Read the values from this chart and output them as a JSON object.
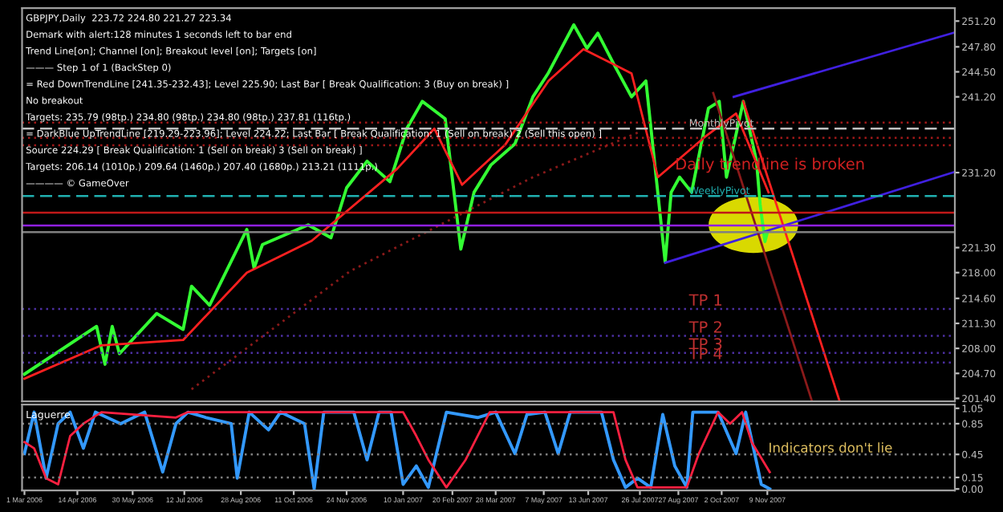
{
  "chart_data": [
    {
      "type": "line",
      "title": "GBPJPY,Daily  223.72 224.80 221.27 223.34",
      "annotations": [
        "Demark with alert:128 minutes 1 seconds left to bar end",
        "Trend Line[on]; Channel [on]; Breakout level [on]; Targets [on]",
        "——— Step 1 of 1 (BackStep 0)",
        "= Red DownTrendLine [241.35-232.43]; Level 225.90; Last Bar [ Break Qualification: 3 (Buy on break) ]",
        "No breakout",
        "Targets: 235.79 (98tp.) 234.80 (98tp.) 234.80 (98tp.) 237.81 (116tp.)",
        "= DarkBlue UpTrendLine [219.29-223.96]; Level 224.22; Last Bar [ Break Qualification: 1 (Sell on break) 2 (Sell this open) ]",
        "Source 224.29 [ Break Qualification: 1 (Sell on break) 3 (Sell on break) ]",
        "Targets: 206.14 (1010p.) 209.64 (1460p.) 207.40 (1680p.) 213.21 (1111p.)",
        "———— © GameOver",
        "Daily trendline is broken"
      ],
      "xlim": [
        "2006-02-27",
        "2008-04-13"
      ],
      "ylim": [
        201.0,
        252.9
      ],
      "yticks": [
        {
          "value": 201.4,
          "label": "201.40"
        },
        {
          "value": 204.7,
          "label": "204.70"
        },
        {
          "value": 208.0,
          "label": "208.00"
        },
        {
          "value": 211.3,
          "label": "211.30"
        },
        {
          "value": 214.6,
          "label": "214.60"
        },
        {
          "value": 218.0,
          "label": "218.00"
        },
        {
          "value": 221.3,
          "label": "221.30"
        },
        {
          "value": 231.2,
          "label": "231.20"
        },
        {
          "value": 241.2,
          "label": "241.20"
        },
        {
          "value": 244.5,
          "label": "244.50"
        },
        {
          "value": 247.8,
          "label": "247.80"
        },
        {
          "value": 251.2,
          "label": "251.20"
        }
      ],
      "tick_labels": "y",
      "series": [
        {
          "color": "#33ff33",
          "x": [
            "2006-03-01",
            "2006-04-30",
            "2006-05-07",
            "2006-05-13",
            "2006-05-19",
            "2006-06-19",
            "2006-07-11",
            "2006-07-18",
            "2006-08-02",
            "2006-09-02",
            "2006-09-08",
            "2006-09-15",
            "2006-10-23",
            "2006-11-11",
            "2006-11-24",
            "2006-12-11",
            "2006-12-30",
            "2007-01-13",
            "2007-01-26",
            "2007-02-14",
            "2007-02-27",
            "2007-03-10",
            "2007-03-24",
            "2007-04-13",
            "2007-04-28",
            "2007-05-11",
            "2007-06-01",
            "2007-06-12",
            "2007-06-21",
            "2007-07-05",
            "2007-07-19",
            "2007-07-31",
            "2007-08-16",
            "2007-08-21",
            "2007-08-28",
            "2007-09-07",
            "2007-09-21",
            "2007-09-30",
            "2007-10-06",
            "2007-10-16",
            "2007-10-20",
            "2007-10-31",
            "2007-11-03",
            "2007-11-07",
            "2007-11-09"
          ],
          "values": [
            204.6,
            210.9,
            205.9,
            210.9,
            207.3,
            212.6,
            210.5,
            216.2,
            213.7,
            223.7,
            218.6,
            221.7,
            224.3,
            222.6,
            229.2,
            232.7,
            230.0,
            237.0,
            240.6,
            238.3,
            221.1,
            228.6,
            232.2,
            235.0,
            241.2,
            244.4,
            250.7,
            247.6,
            249.6,
            245.3,
            241.2,
            243.3,
            219.4,
            228.6,
            230.6,
            228.6,
            239.7,
            240.6,
            230.6,
            237.7,
            240.6,
            232.7,
            227.0,
            222.1,
            223.3
          ]
        },
        {
          "color": "#ff2020",
          "x": [
            "2006-03-01",
            "2006-05-04",
            "2006-07-11",
            "2006-09-02",
            "2006-10-26",
            "2007-01-05",
            "2007-02-05",
            "2007-02-28",
            "2007-04-05",
            "2007-05-11",
            "2007-06-09",
            "2007-07-19",
            "2007-08-10",
            "2007-09-18",
            "2007-10-14",
            "2007-11-10"
          ],
          "values": [
            204.0,
            208.4,
            209.1,
            218.0,
            222.2,
            231.7,
            237.0,
            229.6,
            234.9,
            243.3,
            247.5,
            244.3,
            230.6,
            235.9,
            239.0,
            228.6
          ]
        },
        {
          "color": "#8b1a1a",
          "line_style": "dotted",
          "x": [
            "2006-07-18",
            "2006-11-27",
            "2007-04-28",
            "2007-07-26"
          ],
          "values": [
            202.6,
            218.2,
            230.6,
            236.6
          ]
        },
        {
          "color": "#4020e0",
          "x": [
            "2007-08-16",
            "2008-04-13"
          ],
          "values": [
            219.3,
            231.3
          ]
        },
        {
          "color": "#4020e0",
          "x": [
            "2007-10-12",
            "2008-04-13"
          ],
          "values": [
            241.2,
            249.7
          ]
        },
        {
          "color": "#ff2020",
          "x": [
            "2007-10-20",
            "2008-01-08"
          ],
          "values": [
            240.6,
            201.1
          ]
        },
        {
          "color": "#8b1a1a",
          "x": [
            "2007-09-25",
            "2007-12-16"
          ],
          "values": [
            241.7,
            201.1
          ]
        }
      ],
      "ref_lines": [
        {
          "axis": "y",
          "value": 237.81,
          "color": "#a01818",
          "line_style": "dotted"
        },
        {
          "axis": "y",
          "value": 237.0,
          "color": "#c0c0c0",
          "line_style": "dashed",
          "label": "MonthlyPivot"
        },
        {
          "axis": "y",
          "value": 235.79,
          "color": "#a01818",
          "line_style": "dotted"
        },
        {
          "axis": "y",
          "value": 234.8,
          "color": "#a01818",
          "line_style": "dotted"
        },
        {
          "axis": "y",
          "value": 228.1,
          "color": "#20b0b0",
          "line_style": "dashed",
          "label": "WeeklyPivot"
        },
        {
          "axis": "y",
          "value": 225.9,
          "color": "#c01818",
          "line_style": "solid"
        },
        {
          "axis": "y",
          "value": 224.22,
          "color": "#9020e0",
          "line_style": "solid"
        },
        {
          "axis": "y",
          "value": 223.34,
          "color": "#808080",
          "line_style": "solid"
        },
        {
          "axis": "y",
          "value": 213.21,
          "color": "#4b2fa0",
          "line_style": "dotted",
          "label": "TP 1"
        },
        {
          "axis": "y",
          "value": 209.64,
          "color": "#4b2fa0",
          "line_style": "dotted",
          "label": "TP 2"
        },
        {
          "axis": "y",
          "value": 207.4,
          "color": "#4b2fa0",
          "line_style": "dotted",
          "label": "TP 3"
        },
        {
          "axis": "y",
          "value": 206.14,
          "color": "#4b2fa0",
          "line_style": "dotted",
          "label": "TP 4"
        }
      ]
    },
    {
      "type": "line",
      "annotations": [
        "Laguerre",
        "Indicators don't lie"
      ],
      "xlim": [
        "2006-02-27",
        "2008-04-13"
      ],
      "ylim": [
        -0.02,
        1.1
      ],
      "yticks": [
        {
          "value": 0,
          "label": "0.00"
        },
        0.15,
        0.45,
        0.85,
        1.05
      ],
      "xticks": [
        {
          "value": "2006-03-01",
          "label": "1 Mar 2006"
        },
        {
          "value": "2006-04-14",
          "label": "14 Apr 2006"
        },
        {
          "value": "2006-05-30",
          "label": "30 May 2006"
        },
        {
          "value": "2006-07-12",
          "label": "12 Jul 2006"
        },
        {
          "value": "2006-08-28",
          "label": "28 Aug 2006"
        },
        {
          "value": "2006-10-11",
          "label": "11 Oct 2006"
        },
        {
          "value": "2006-11-24",
          "label": "24 Nov 2006"
        },
        {
          "value": "2007-01-10",
          "label": "10 Jan 2007"
        },
        {
          "value": "2007-02-20",
          "label": "20 Feb 2007"
        },
        {
          "value": "2007-03-28",
          "label": "28 Mar 2007"
        },
        {
          "value": "2007-05-07",
          "label": "7 May 2007"
        },
        {
          "value": "2007-06-13",
          "label": "13 Jun 2007"
        },
        {
          "value": "2007-07-26",
          "label": "26 Jul 2007"
        },
        {
          "value": "2007-08-27",
          "label": "27 Aug 2007"
        },
        {
          "value": "2007-10-02",
          "label": "2 Oct 2007"
        },
        {
          "value": "2007-11-09",
          "label": "9 Nov 2007"
        }
      ],
      "series": [
        {
          "color": "#3399ff",
          "x": [
            "2006-03-01",
            "2006-03-09",
            "2006-03-19",
            "2006-03-29",
            "2006-04-08",
            "2006-04-19",
            "2006-04-29",
            "2006-05-20",
            "2006-06-09",
            "2006-06-24",
            "2006-07-05",
            "2006-07-15",
            "2006-07-30",
            "2006-08-20",
            "2006-08-25",
            "2006-09-04",
            "2006-09-20",
            "2006-09-30",
            "2006-10-20",
            "2006-10-28",
            "2006-11-05",
            "2006-11-30",
            "2006-12-11",
            "2006-12-21",
            "2006-12-31",
            "2007-01-10",
            "2007-01-21",
            "2007-01-31",
            "2007-02-15",
            "2007-03-13",
            "2007-03-28",
            "2007-04-13",
            "2007-04-23",
            "2007-05-08",
            "2007-05-19",
            "2007-05-29",
            "2007-06-24",
            "2007-07-04",
            "2007-07-14",
            "2007-07-24",
            "2007-08-04",
            "2007-08-14",
            "2007-08-24",
            "2007-09-03",
            "2007-09-08",
            "2007-09-29",
            "2007-10-14",
            "2007-10-22",
            "2007-11-04",
            "2007-11-11"
          ],
          "values": [
            0.46,
            1.0,
            0.14,
            0.85,
            1.0,
            0.53,
            1.0,
            0.85,
            1.0,
            0.22,
            0.85,
            1.0,
            0.93,
            0.85,
            0.14,
            1.0,
            0.77,
            1.0,
            0.85,
            0.0,
            1.0,
            1.0,
            0.38,
            1.0,
            1.0,
            0.06,
            0.3,
            0.02,
            1.0,
            0.93,
            1.0,
            0.46,
            0.97,
            1.0,
            0.46,
            1.0,
            1.0,
            0.38,
            0.02,
            0.14,
            0.02,
            0.97,
            0.3,
            0.02,
            1.0,
            1.0,
            0.46,
            1.0,
            0.06,
            0.0
          ]
        },
        {
          "color": "#ff2040",
          "x": [
            "2006-03-01",
            "2006-03-09",
            "2006-03-19",
            "2006-03-29",
            "2006-04-08",
            "2006-04-19",
            "2006-05-04",
            "2006-07-05",
            "2006-07-15",
            "2007-01-10",
            "2007-01-21",
            "2007-01-31",
            "2007-02-15",
            "2007-03-03",
            "2007-03-23",
            "2007-07-04",
            "2007-07-14",
            "2007-07-24",
            "2007-09-03",
            "2007-09-13",
            "2007-09-29",
            "2007-10-09",
            "2007-10-19",
            "2007-10-27",
            "2007-11-11"
          ],
          "values": [
            0.61,
            0.53,
            0.14,
            0.06,
            0.69,
            0.85,
            1.0,
            0.93,
            1.0,
            1.0,
            0.69,
            0.38,
            0.02,
            0.38,
            1.0,
            1.0,
            0.38,
            0.02,
            0.02,
            0.46,
            1.0,
            0.85,
            1.0,
            0.61,
            0.22
          ]
        }
      ],
      "ref_lines": [
        {
          "axis": "y",
          "value": 0.85,
          "color": "#808080",
          "line_style": "dotted"
        },
        {
          "axis": "y",
          "value": 0.45,
          "color": "#808080",
          "line_style": "dotted"
        },
        {
          "axis": "y",
          "value": 0.15,
          "color": "#808080",
          "line_style": "dotted"
        }
      ]
    }
  ]
}
